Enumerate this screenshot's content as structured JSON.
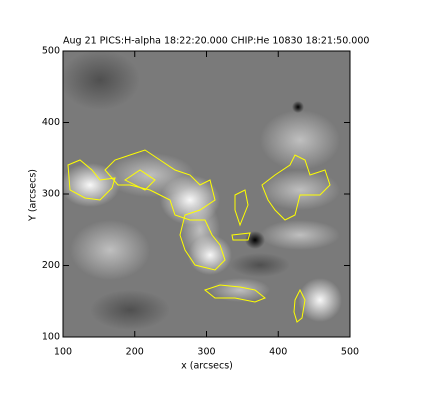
{
  "chart_data": {
    "type": "image",
    "title": "Aug 21 PICS:H-alpha 18:22:20.000 CHIP:He 10830 18:21:50.000",
    "x_label": "x (arcsecs)",
    "y_label": "Y (arcsecs)",
    "xlim": [
      100,
      500
    ],
    "xticks": [
      100,
      200,
      300,
      400,
      500
    ],
    "ylim": [
      100,
      500
    ],
    "yticks": [
      100,
      200,
      300,
      400,
      500
    ]
  }
}
